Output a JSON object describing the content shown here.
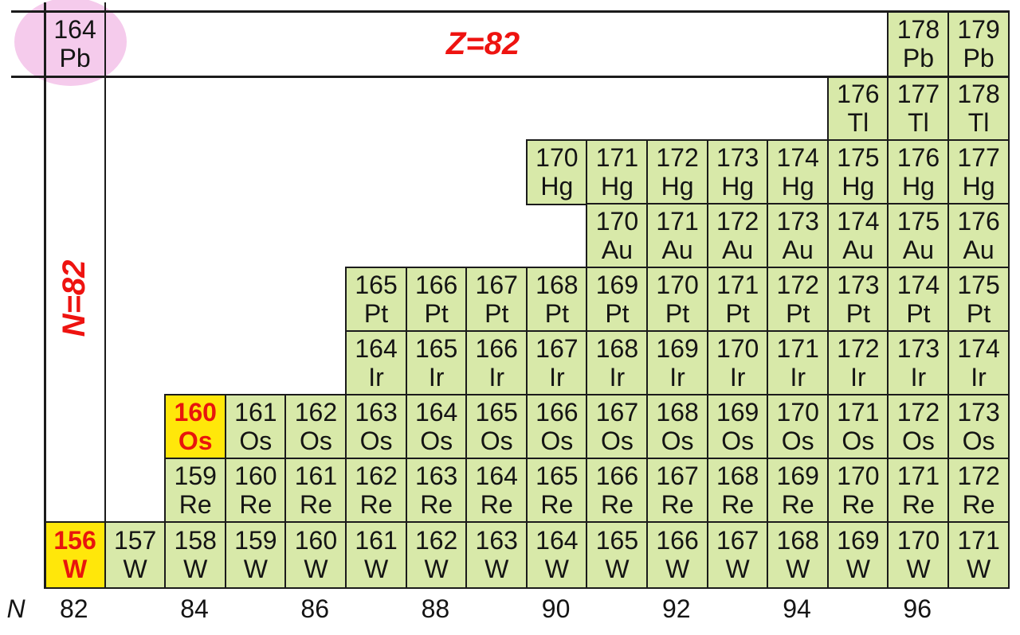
{
  "page": {
    "description": "Section of the chart of nuclides near the proton drip line showing isotopes of W, Re, Os, Ir, Pt, Au, Hg, Tl and Pb around the N=82 and Z=82 shell closures"
  },
  "colors": {
    "cell_green": "#d8e9a9",
    "highlight_yellow": "#ffe70a",
    "highlight_text_red": "#e8150d",
    "boundary_label_red": "#ee1310",
    "ellipse_pink": "#f5cbec",
    "border_black": "#1b1b1b"
  },
  "chart_data": {
    "type": "heatmap",
    "title": "Chart of nuclides segment (neutron number N vs element) around N=82, Z=82",
    "x_axis": {
      "label": "N",
      "ticks": [
        82,
        84,
        86,
        88,
        90,
        92,
        94,
        96
      ],
      "range": [
        82,
        97
      ]
    },
    "boundary_labels": {
      "z": "Z=82",
      "n": "N=82"
    },
    "highlights": {
      "pink_ellipse_nuclide": "164Pb",
      "yellow_nuclides": [
        "160Os",
        "156W"
      ]
    },
    "rows": [
      {
        "element": "Pb",
        "cells": [
          [
            164,
            82,
            "white"
          ],
          [
            178,
            96
          ],
          [
            179,
            97
          ]
        ]
      },
      {
        "element": "Tl",
        "cells": [
          [
            176,
            95
          ],
          [
            177,
            96
          ],
          [
            178,
            97
          ]
        ]
      },
      {
        "element": "Hg",
        "cells": [
          [
            170,
            90
          ],
          [
            171,
            91
          ],
          [
            172,
            92
          ],
          [
            173,
            93
          ],
          [
            174,
            94
          ],
          [
            175,
            95
          ],
          [
            176,
            96
          ],
          [
            177,
            97
          ]
        ]
      },
      {
        "element": "Au",
        "cells": [
          [
            170,
            91
          ],
          [
            171,
            92
          ],
          [
            172,
            93
          ],
          [
            173,
            94
          ],
          [
            174,
            95
          ],
          [
            175,
            96
          ],
          [
            176,
            97
          ]
        ]
      },
      {
        "element": "Pt",
        "cells": [
          [
            165,
            87
          ],
          [
            166,
            88
          ],
          [
            167,
            89
          ],
          [
            168,
            90
          ],
          [
            169,
            91
          ],
          [
            170,
            92
          ],
          [
            171,
            93
          ],
          [
            172,
            94
          ],
          [
            173,
            95
          ],
          [
            174,
            96
          ],
          [
            175,
            97
          ]
        ]
      },
      {
        "element": "Ir",
        "cells": [
          [
            164,
            87
          ],
          [
            165,
            88
          ],
          [
            166,
            89
          ],
          [
            167,
            90
          ],
          [
            168,
            91
          ],
          [
            169,
            92
          ],
          [
            170,
            93
          ],
          [
            171,
            94
          ],
          [
            172,
            95
          ],
          [
            173,
            96
          ],
          [
            174,
            97
          ]
        ]
      },
      {
        "element": "Os",
        "cells": [
          [
            160,
            84,
            "yellow"
          ],
          [
            161,
            85
          ],
          [
            162,
            86
          ],
          [
            163,
            87
          ],
          [
            164,
            88
          ],
          [
            165,
            89
          ],
          [
            166,
            90
          ],
          [
            167,
            91
          ],
          [
            168,
            92
          ],
          [
            169,
            93
          ],
          [
            170,
            94
          ],
          [
            171,
            95
          ],
          [
            172,
            96
          ],
          [
            173,
            97
          ]
        ]
      },
      {
        "element": "Re",
        "cells": [
          [
            159,
            84
          ],
          [
            160,
            85
          ],
          [
            161,
            86
          ],
          [
            162,
            87
          ],
          [
            163,
            88
          ],
          [
            164,
            89
          ],
          [
            165,
            90
          ],
          [
            166,
            91
          ],
          [
            167,
            92
          ],
          [
            168,
            93
          ],
          [
            169,
            94
          ],
          [
            170,
            95
          ],
          [
            171,
            96
          ],
          [
            172,
            97
          ]
        ]
      },
      {
        "element": "W",
        "cells": [
          [
            156,
            82,
            "yellow"
          ],
          [
            157,
            83
          ],
          [
            158,
            84
          ],
          [
            159,
            85
          ],
          [
            160,
            86
          ],
          [
            161,
            87
          ],
          [
            162,
            88
          ],
          [
            163,
            89
          ],
          [
            164,
            90
          ],
          [
            165,
            91
          ],
          [
            166,
            92
          ],
          [
            167,
            93
          ],
          [
            168,
            94
          ],
          [
            169,
            95
          ],
          [
            170,
            96
          ],
          [
            171,
            97
          ]
        ]
      }
    ]
  }
}
